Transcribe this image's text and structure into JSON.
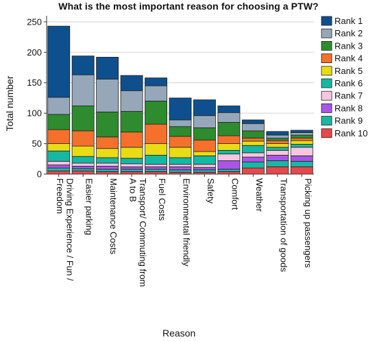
{
  "chart_data": {
    "type": "bar",
    "stacked": true,
    "title": "What is the most important reason for choosing a PTW?",
    "xlabel": "Reason",
    "ylabel": "Total number",
    "ylim": [
      0,
      260
    ],
    "yticks": [
      0,
      50,
      100,
      150,
      200,
      250
    ],
    "grid": "horizontal",
    "legend_position": "right",
    "categories": [
      [
        "Driving Experience / Fun /",
        "Freedom"
      ],
      [
        "Easier parking"
      ],
      [
        "Maintenance Costs"
      ],
      [
        "Transport/ Commuting from",
        "A to B"
      ],
      [
        "Fuel Costs"
      ],
      [
        "Environmental friendly"
      ],
      [
        "Safety"
      ],
      [
        "Comfort"
      ],
      [
        "Weather"
      ],
      [
        "Transportation of goods"
      ],
      [
        "Picking up passengers"
      ]
    ],
    "series": [
      {
        "name": "Rank 10",
        "color": "#e8474b",
        "values": [
          5,
          5,
          4,
          4,
          4,
          3,
          3,
          4,
          10,
          12,
          12
        ]
      },
      {
        "name": "Rank 9",
        "color": "#1bb6a4",
        "values": [
          5,
          4,
          4,
          4,
          4,
          4,
          4,
          4,
          10,
          10,
          9
        ]
      },
      {
        "name": "Rank 8",
        "color": "#a855e8",
        "values": [
          5,
          4,
          5,
          4,
          4,
          5,
          4,
          14,
          8,
          9,
          9
        ]
      },
      {
        "name": "Rank 7",
        "color": "#f9c6e0",
        "values": [
          6,
          5,
          5,
          5,
          4,
          4,
          5,
          11,
          7,
          8,
          14
        ]
      },
      {
        "name": "Rank 6",
        "color": "#16b8a3",
        "values": [
          17,
          11,
          9,
          9,
          15,
          11,
          14,
          6,
          12,
          5,
          5
        ]
      },
      {
        "name": "Rank 5",
        "color": "#e9dc14",
        "values": [
          12,
          17,
          15,
          18,
          19,
          17,
          7,
          11,
          7,
          6,
          6
        ]
      },
      {
        "name": "Rank 4",
        "color": "#f5702b",
        "values": [
          23,
          25,
          19,
          25,
          32,
          18,
          19,
          13,
          5,
          5,
          4
        ]
      },
      {
        "name": "Rank 3",
        "color": "#2e8b2e",
        "values": [
          25,
          41,
          41,
          34,
          38,
          16,
          20,
          22,
          12,
          4,
          5
        ]
      },
      {
        "name": "Rank 2",
        "color": "#96a7b9",
        "values": [
          28,
          51,
          54,
          34,
          25,
          11,
          20,
          16,
          12,
          5,
          4
        ]
      },
      {
        "name": "Rank 1",
        "color": "#0e4f8e",
        "values": [
          117,
          31,
          36,
          25,
          13,
          36,
          26,
          11,
          6,
          6,
          4
        ]
      }
    ],
    "legend_order": [
      "Rank 1",
      "Rank 2",
      "Rank 3",
      "Rank 4",
      "Rank 5",
      "Rank 6",
      "Rank 7",
      "Rank 8",
      "Rank 9",
      "Rank 10"
    ]
  }
}
